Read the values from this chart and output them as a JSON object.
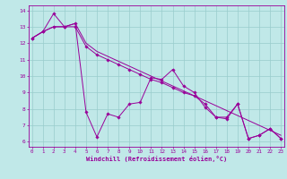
{
  "xlabel": "Windchill (Refroidissement éolien,°C)",
  "bg_color": "#c0e8e8",
  "line_color": "#990099",
  "grid_color": "#99cccc",
  "yticks": [
    6,
    7,
    8,
    9,
    10,
    11,
    12,
    13,
    14
  ],
  "xticks": [
    0,
    1,
    2,
    3,
    4,
    5,
    6,
    7,
    8,
    9,
    10,
    11,
    12,
    13,
    14,
    15,
    16,
    17,
    18,
    19,
    20,
    21,
    22,
    23
  ],
  "series1_x": [
    0,
    1,
    2,
    3,
    4,
    5,
    6,
    7,
    8,
    9,
    10,
    11,
    12,
    13,
    14,
    15,
    16,
    17,
    18,
    19,
    20,
    21,
    22,
    23
  ],
  "series1_y": [
    12.3,
    12.7,
    13.8,
    13.0,
    13.2,
    7.8,
    6.3,
    7.7,
    7.5,
    8.3,
    8.4,
    9.9,
    9.8,
    10.4,
    9.4,
    9.0,
    8.1,
    7.5,
    7.4,
    8.3,
    6.2,
    6.4,
    6.8,
    6.2
  ],
  "series2_x": [
    0,
    1,
    2,
    3,
    4,
    5,
    6,
    7,
    8,
    9,
    10,
    11,
    12,
    13,
    14,
    15,
    16,
    17,
    18,
    19,
    20,
    21,
    22,
    23
  ],
  "series2_y": [
    12.3,
    12.7,
    13.0,
    13.0,
    13.2,
    12.0,
    11.5,
    11.2,
    10.9,
    10.6,
    10.3,
    10.0,
    9.7,
    9.4,
    9.1,
    8.8,
    8.5,
    8.2,
    7.9,
    7.6,
    7.3,
    7.0,
    6.7,
    6.4
  ],
  "series3_x": [
    0,
    1,
    2,
    3,
    4,
    5,
    6,
    7,
    8,
    9,
    10,
    11,
    12,
    13,
    14,
    15,
    16,
    17,
    18,
    19,
    20,
    21,
    22,
    23
  ],
  "series3_y": [
    12.3,
    12.7,
    13.0,
    13.0,
    13.0,
    11.8,
    11.3,
    11.0,
    10.7,
    10.4,
    10.1,
    9.8,
    9.6,
    9.3,
    9.0,
    8.8,
    8.3,
    7.5,
    7.5,
    8.3,
    6.2,
    6.4,
    6.8,
    6.2
  ]
}
